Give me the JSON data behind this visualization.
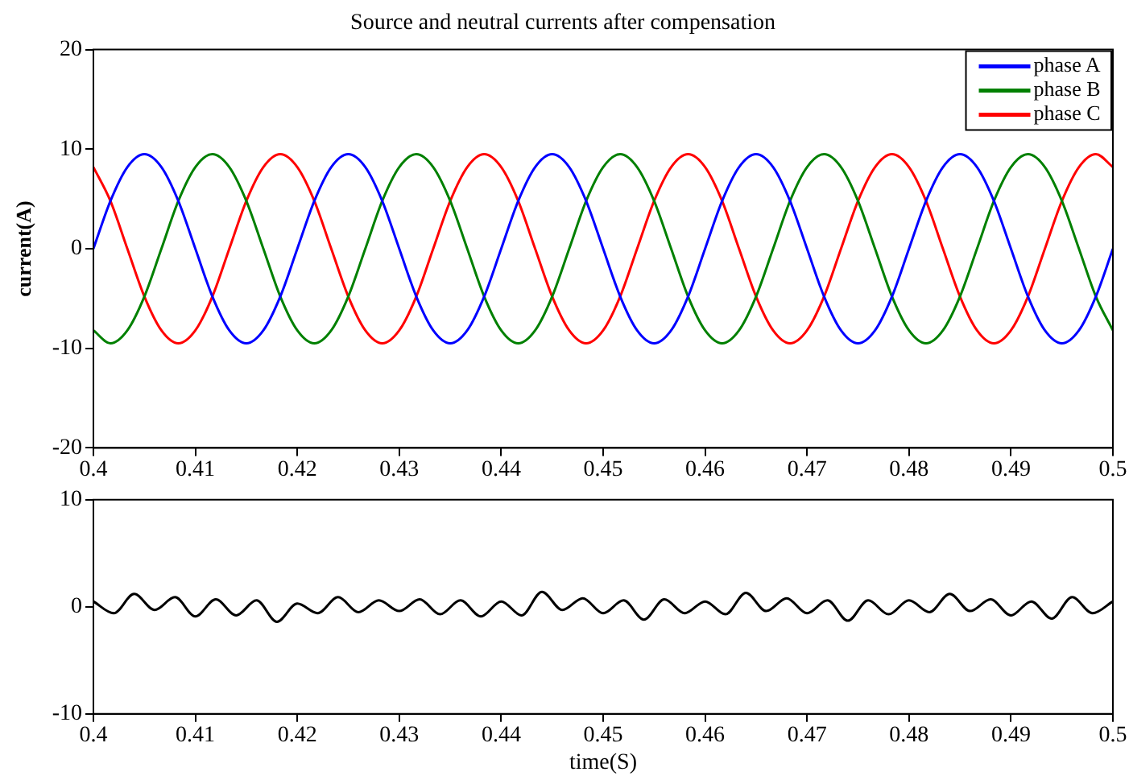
{
  "chart_data": [
    {
      "type": "line",
      "title": "Source and neutral currents after compensation",
      "ylabel": "current(A)",
      "x": [
        0.4,
        0.40167,
        0.40333,
        0.405,
        0.40667,
        0.40833,
        0.41,
        0.41167,
        0.41333,
        0.415,
        0.41667,
        0.41833,
        0.42,
        0.42167,
        0.42333,
        0.425,
        0.42667,
        0.42833,
        0.43,
        0.43167,
        0.43333,
        0.435,
        0.43667,
        0.43833,
        0.44,
        0.44167,
        0.44333,
        0.445,
        0.44667,
        0.44833,
        0.45,
        0.45167,
        0.45333,
        0.455,
        0.45667,
        0.45833,
        0.46,
        0.46167,
        0.46333,
        0.465,
        0.46667,
        0.46833,
        0.47,
        0.47167,
        0.47333,
        0.475,
        0.47667,
        0.47833,
        0.48,
        0.48167,
        0.48333,
        0.485,
        0.48667,
        0.48833,
        0.49,
        0.49167,
        0.49333,
        0.495,
        0.49667,
        0.49833,
        0.5
      ],
      "series": [
        {
          "name": "phase A",
          "color": "#0000ff",
          "values": [
            0,
            4.8,
            8.2,
            9.5,
            8.2,
            4.8,
            0,
            -4.8,
            -8.2,
            -9.5,
            -8.2,
            -4.8,
            0,
            4.8,
            8.2,
            9.5,
            8.2,
            4.8,
            0,
            -4.8,
            -8.2,
            -9.5,
            -8.2,
            -4.8,
            0,
            4.8,
            8.2,
            9.5,
            8.2,
            4.8,
            0,
            -4.8,
            -8.2,
            -9.5,
            -8.2,
            -4.8,
            0,
            4.8,
            8.2,
            9.5,
            8.2,
            4.8,
            0,
            -4.8,
            -8.2,
            -9.5,
            -8.2,
            -4.8,
            0,
            4.8,
            8.2,
            9.5,
            8.2,
            4.8,
            0,
            -4.8,
            -8.2,
            -9.5,
            -8.2,
            -4.8,
            0
          ]
        },
        {
          "name": "phase B",
          "color": "#008000",
          "values": [
            -8.2,
            -9.5,
            -8.2,
            -4.8,
            0,
            4.8,
            8.2,
            9.5,
            8.2,
            4.8,
            0,
            -4.8,
            -8.2,
            -9.5,
            -8.2,
            -4.8,
            0,
            4.8,
            8.2,
            9.5,
            8.2,
            4.8,
            0,
            -4.8,
            -8.2,
            -9.5,
            -8.2,
            -4.8,
            0,
            4.8,
            8.2,
            9.5,
            8.2,
            4.8,
            0,
            -4.8,
            -8.2,
            -9.5,
            -8.2,
            -4.8,
            0,
            4.8,
            8.2,
            9.5,
            8.2,
            4.8,
            0,
            -4.8,
            -8.2,
            -9.5,
            -8.2,
            -4.8,
            0,
            4.8,
            8.2,
            9.5,
            8.2,
            4.8,
            0,
            -4.8,
            -8.2
          ]
        },
        {
          "name": "phase C",
          "color": "#ff0000",
          "values": [
            8.2,
            4.8,
            0,
            -4.8,
            -8.2,
            -9.5,
            -8.2,
            -4.8,
            0,
            4.8,
            8.2,
            9.5,
            8.2,
            4.8,
            0,
            -4.8,
            -8.2,
            -9.5,
            -8.2,
            -4.8,
            0,
            4.8,
            8.2,
            9.5,
            8.2,
            4.8,
            0,
            -4.8,
            -8.2,
            -9.5,
            -8.2,
            -4.8,
            0,
            4.8,
            8.2,
            9.5,
            8.2,
            4.8,
            0,
            -4.8,
            -8.2,
            -9.5,
            -8.2,
            -4.8,
            0,
            4.8,
            8.2,
            9.5,
            8.2,
            4.8,
            0,
            -4.8,
            -8.2,
            -9.5,
            -8.2,
            -4.8,
            0,
            4.8,
            8.2,
            9.5,
            8.2
          ]
        }
      ],
      "xlim": [
        0.4,
        0.5
      ],
      "xticks": [
        0.4,
        0.41,
        0.42,
        0.43,
        0.44,
        0.45,
        0.46,
        0.47,
        0.48,
        0.49,
        0.5
      ],
      "ylim": [
        -20,
        20
      ],
      "yticks": [
        -20,
        -10,
        0,
        10,
        20
      ],
      "grid": false,
      "legend": "top right"
    },
    {
      "type": "line",
      "xlabel": "time(S)",
      "x": [
        0.4,
        0.402,
        0.404,
        0.406,
        0.408,
        0.41,
        0.412,
        0.414,
        0.416,
        0.418,
        0.42,
        0.422,
        0.424,
        0.426,
        0.428,
        0.43,
        0.432,
        0.434,
        0.436,
        0.438,
        0.44,
        0.442,
        0.444,
        0.446,
        0.448,
        0.45,
        0.452,
        0.454,
        0.456,
        0.458,
        0.46,
        0.462,
        0.464,
        0.466,
        0.468,
        0.47,
        0.472,
        0.474,
        0.476,
        0.478,
        0.48,
        0.482,
        0.484,
        0.486,
        0.488,
        0.49,
        0.492,
        0.494,
        0.496,
        0.498,
        0.5
      ],
      "series": [
        {
          "color": "#000000",
          "values": [
            0.5,
            -0.6,
            1.2,
            -0.3,
            0.9,
            -0.9,
            0.7,
            -0.8,
            0.6,
            -1.4,
            0.3,
            -0.6,
            0.9,
            -0.5,
            0.6,
            -0.4,
            0.7,
            -0.7,
            0.6,
            -0.9,
            0.5,
            -0.8,
            1.4,
            -0.3,
            0.8,
            -0.6,
            0.6,
            -1.2,
            0.7,
            -0.6,
            0.5,
            -0.7,
            1.3,
            -0.4,
            0.8,
            -0.6,
            0.6,
            -1.3,
            0.6,
            -0.7,
            0.6,
            -0.5,
            1.2,
            -0.4,
            0.7,
            -0.8,
            0.5,
            -1.1,
            0.9,
            -0.6,
            0.5
          ]
        }
      ],
      "xlim": [
        0.4,
        0.5
      ],
      "xticks": [
        0.4,
        0.41,
        0.42,
        0.43,
        0.44,
        0.45,
        0.46,
        0.47,
        0.48,
        0.49,
        0.5
      ],
      "ylim": [
        -10,
        10
      ],
      "yticks": [
        -10,
        0,
        10
      ],
      "grid": false,
      "legend": false
    }
  ]
}
